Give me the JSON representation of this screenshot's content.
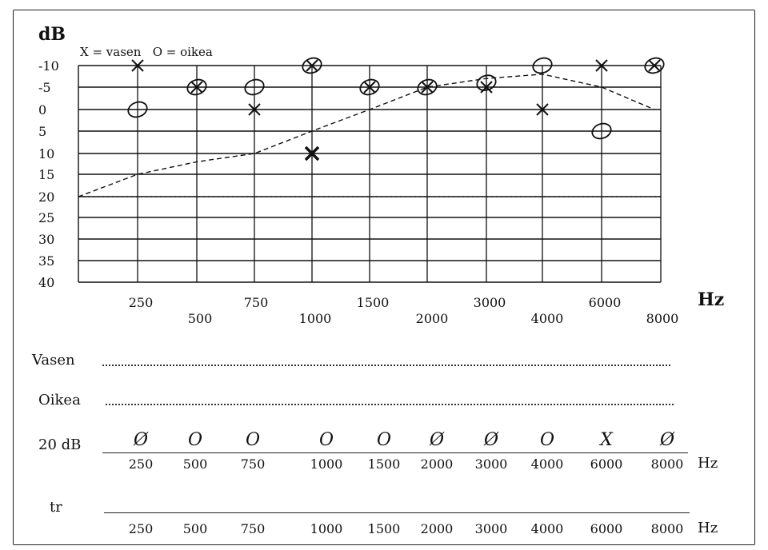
{
  "chart_data": {
    "type": "scatter",
    "ylabel": "dB",
    "xlabel": "Hz",
    "legend": "X = vasen   O = oikea",
    "legend_position": "top-left",
    "y_axis": {
      "ticks": [
        "-10",
        "-5",
        "0",
        "5",
        "10",
        "15",
        "20",
        "25",
        "30",
        "35",
        "40"
      ],
      "inverted": true,
      "ylim": [
        -10,
        40
      ]
    },
    "x_axis": {
      "upper_ticks": [
        "250",
        "750",
        "1500",
        "3000",
        "6000"
      ],
      "lower_ticks": [
        "500",
        "1000",
        "2000",
        "4000",
        "8000"
      ]
    },
    "series": [
      {
        "name": "vasen",
        "marker": "X",
        "points": [
          {
            "x": "250",
            "y": -10
          },
          {
            "x": "500",
            "y": -5
          },
          {
            "x": "750",
            "y": 0
          },
          {
            "x": "1000",
            "y": -10
          },
          {
            "x": "1000",
            "y": 10
          },
          {
            "x": "1500",
            "y": -5
          },
          {
            "x": "2000",
            "y": -5
          },
          {
            "x": "3000",
            "y": -5
          },
          {
            "x": "4000",
            "y": 0
          },
          {
            "x": "6000",
            "y": -10
          },
          {
            "x": "8000",
            "y": -10
          }
        ]
      },
      {
        "name": "oikea",
        "marker": "O",
        "points": [
          {
            "x": "250",
            "y": 0
          },
          {
            "x": "500",
            "y": -5
          },
          {
            "x": "750",
            "y": -5
          },
          {
            "x": "1000",
            "y": -10
          },
          {
            "x": "1500",
            "y": -5
          },
          {
            "x": "2000",
            "y": -5
          },
          {
            "x": "3000",
            "y": -6
          },
          {
            "x": "4000",
            "y": -10
          },
          {
            "x": "6000",
            "y": 5
          },
          {
            "x": "8000",
            "y": -10
          }
        ]
      }
    ],
    "reference_curve": [
      {
        "x": "125",
        "y": 20
      },
      {
        "x": "250",
        "y": 15
      },
      {
        "x": "500",
        "y": 12
      },
      {
        "x": "750",
        "y": 10
      },
      {
        "x": "1000",
        "y": 5
      },
      {
        "x": "1500",
        "y": 0
      },
      {
        "x": "2000",
        "y": -5
      },
      {
        "x": "3000",
        "y": -7
      },
      {
        "x": "4000",
        "y": -8
      },
      {
        "x": "6000",
        "y": -5
      },
      {
        "x": "8000",
        "y": 0
      }
    ],
    "reference_line_y": 20,
    "grid": true
  },
  "lines": {
    "vasen_label": "Vasen",
    "oikea_label": "Oikea",
    "screen_label": "20 dB",
    "tr_label": "tr",
    "unit": "Hz",
    "freqs": [
      "250",
      "500",
      "750",
      "1000",
      "1500",
      "2000",
      "3000",
      "4000",
      "6000",
      "8000"
    ],
    "screen_marks": [
      "Ø",
      "O",
      "O",
      "O",
      "O",
      "Ø",
      "Ø",
      "O",
      "X",
      "Ø"
    ]
  },
  "colors": {
    "ink": "#111111",
    "paper": "#ffffff"
  }
}
